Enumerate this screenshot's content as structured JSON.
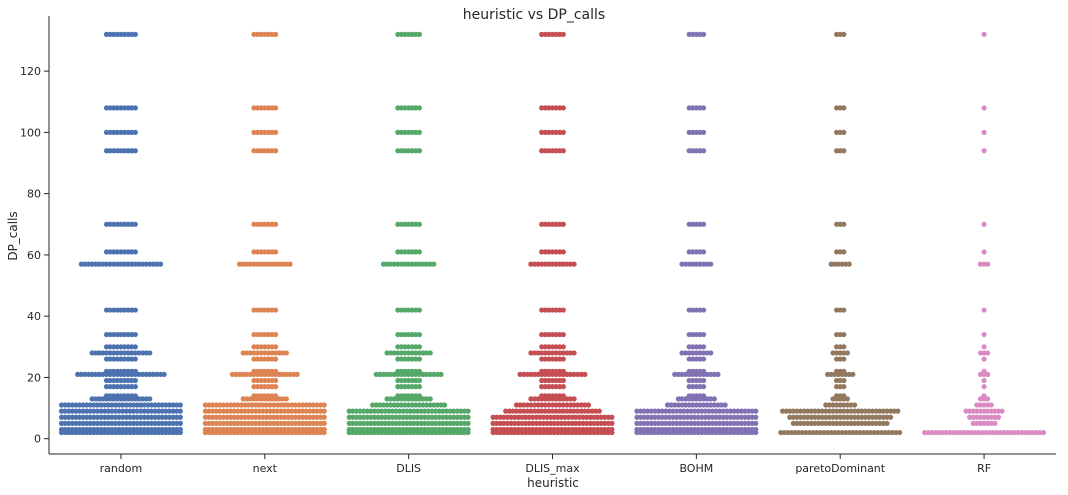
{
  "chart_data": {
    "type": "scatter",
    "subtype": "swarm",
    "title": "heuristic vs DP_calls",
    "xlabel": "heuristic",
    "ylabel": "DP_calls",
    "ylim": [
      -5,
      138
    ],
    "yticks": [
      0,
      20,
      40,
      60,
      80,
      100,
      120
    ],
    "categories": [
      "random",
      "next",
      "DLIS",
      "DLIS_max",
      "BOHM",
      "paretoDominant",
      "RF"
    ],
    "colors": [
      "#4c72b0",
      "#dd8452",
      "#55a868",
      "#c44e52",
      "#8172b3",
      "#937860",
      "#da8bc3"
    ],
    "grid": false,
    "series": [
      {
        "category": "random",
        "levels": [
          {
            "y": 132,
            "count": 9
          },
          {
            "y": 108,
            "count": 9
          },
          {
            "y": 100,
            "count": 9
          },
          {
            "y": 94,
            "count": 9
          },
          {
            "y": 70,
            "count": 9
          },
          {
            "y": 61,
            "count": 9
          },
          {
            "y": 57,
            "count": 23
          },
          {
            "y": 42,
            "count": 9
          },
          {
            "y": 34,
            "count": 9
          },
          {
            "y": 30,
            "count": 9
          },
          {
            "y": 28,
            "count": 17
          },
          {
            "y": 26,
            "count": 9
          },
          {
            "y": 22,
            "count": 9
          },
          {
            "y": 21,
            "count": 25
          },
          {
            "y": 19,
            "count": 9
          },
          {
            "y": 17,
            "count": 9
          },
          {
            "y": 14,
            "count": 9
          },
          {
            "y": 13,
            "count": 17
          },
          {
            "y": 11,
            "count": 34
          },
          {
            "y": 9,
            "count": 34
          },
          {
            "y": 7,
            "count": 34
          },
          {
            "y": 5,
            "count": 34
          },
          {
            "y": 3,
            "count": 34
          },
          {
            "y": 2,
            "count": 34
          }
        ]
      },
      {
        "category": "next",
        "levels": [
          {
            "y": 132,
            "count": 7
          },
          {
            "y": 108,
            "count": 7
          },
          {
            "y": 100,
            "count": 7
          },
          {
            "y": 94,
            "count": 7
          },
          {
            "y": 70,
            "count": 7
          },
          {
            "y": 61,
            "count": 7
          },
          {
            "y": 57,
            "count": 15
          },
          {
            "y": 42,
            "count": 7
          },
          {
            "y": 34,
            "count": 7
          },
          {
            "y": 30,
            "count": 7
          },
          {
            "y": 28,
            "count": 13
          },
          {
            "y": 26,
            "count": 7
          },
          {
            "y": 22,
            "count": 7
          },
          {
            "y": 21,
            "count": 19
          },
          {
            "y": 19,
            "count": 7
          },
          {
            "y": 17,
            "count": 7
          },
          {
            "y": 14,
            "count": 7
          },
          {
            "y": 13,
            "count": 13
          },
          {
            "y": 11,
            "count": 34
          },
          {
            "y": 9,
            "count": 34
          },
          {
            "y": 7,
            "count": 34
          },
          {
            "y": 5,
            "count": 34
          },
          {
            "y": 3,
            "count": 34
          },
          {
            "y": 2,
            "count": 34
          }
        ]
      },
      {
        "category": "DLIS",
        "levels": [
          {
            "y": 132,
            "count": 7
          },
          {
            "y": 108,
            "count": 7
          },
          {
            "y": 100,
            "count": 7
          },
          {
            "y": 94,
            "count": 7
          },
          {
            "y": 70,
            "count": 7
          },
          {
            "y": 61,
            "count": 7
          },
          {
            "y": 57,
            "count": 15
          },
          {
            "y": 42,
            "count": 7
          },
          {
            "y": 34,
            "count": 7
          },
          {
            "y": 30,
            "count": 7
          },
          {
            "y": 28,
            "count": 13
          },
          {
            "y": 26,
            "count": 7
          },
          {
            "y": 22,
            "count": 7
          },
          {
            "y": 21,
            "count": 19
          },
          {
            "y": 19,
            "count": 7
          },
          {
            "y": 17,
            "count": 7
          },
          {
            "y": 14,
            "count": 7
          },
          {
            "y": 13,
            "count": 13
          },
          {
            "y": 11,
            "count": 21
          },
          {
            "y": 9,
            "count": 34
          },
          {
            "y": 7,
            "count": 34
          },
          {
            "y": 5,
            "count": 34
          },
          {
            "y": 3,
            "count": 34
          },
          {
            "y": 2,
            "count": 34
          }
        ]
      },
      {
        "category": "DLIS_max",
        "levels": [
          {
            "y": 132,
            "count": 7
          },
          {
            "y": 108,
            "count": 7
          },
          {
            "y": 100,
            "count": 7
          },
          {
            "y": 94,
            "count": 7
          },
          {
            "y": 70,
            "count": 7
          },
          {
            "y": 61,
            "count": 7
          },
          {
            "y": 57,
            "count": 13
          },
          {
            "y": 42,
            "count": 7
          },
          {
            "y": 34,
            "count": 7
          },
          {
            "y": 30,
            "count": 7
          },
          {
            "y": 28,
            "count": 13
          },
          {
            "y": 26,
            "count": 7
          },
          {
            "y": 22,
            "count": 7
          },
          {
            "y": 21,
            "count": 19
          },
          {
            "y": 19,
            "count": 7
          },
          {
            "y": 17,
            "count": 7
          },
          {
            "y": 14,
            "count": 7
          },
          {
            "y": 13,
            "count": 13
          },
          {
            "y": 11,
            "count": 21
          },
          {
            "y": 9,
            "count": 27
          },
          {
            "y": 7,
            "count": 34
          },
          {
            "y": 5,
            "count": 34
          },
          {
            "y": 3,
            "count": 34
          },
          {
            "y": 2,
            "count": 34
          }
        ]
      },
      {
        "category": "BOHM",
        "levels": [
          {
            "y": 132,
            "count": 5
          },
          {
            "y": 108,
            "count": 5
          },
          {
            "y": 100,
            "count": 5
          },
          {
            "y": 94,
            "count": 5
          },
          {
            "y": 70,
            "count": 5
          },
          {
            "y": 61,
            "count": 5
          },
          {
            "y": 57,
            "count": 9
          },
          {
            "y": 42,
            "count": 5
          },
          {
            "y": 34,
            "count": 5
          },
          {
            "y": 30,
            "count": 5
          },
          {
            "y": 28,
            "count": 9
          },
          {
            "y": 26,
            "count": 5
          },
          {
            "y": 22,
            "count": 5
          },
          {
            "y": 21,
            "count": 13
          },
          {
            "y": 19,
            "count": 5
          },
          {
            "y": 17,
            "count": 5
          },
          {
            "y": 14,
            "count": 5
          },
          {
            "y": 13,
            "count": 11
          },
          {
            "y": 11,
            "count": 17
          },
          {
            "y": 9,
            "count": 34
          },
          {
            "y": 7,
            "count": 34
          },
          {
            "y": 5,
            "count": 34
          },
          {
            "y": 3,
            "count": 34
          },
          {
            "y": 2,
            "count": 34
          }
        ]
      },
      {
        "category": "paretoDominant",
        "levels": [
          {
            "y": 132,
            "count": 3
          },
          {
            "y": 108,
            "count": 3
          },
          {
            "y": 100,
            "count": 3
          },
          {
            "y": 94,
            "count": 3
          },
          {
            "y": 70,
            "count": 3
          },
          {
            "y": 61,
            "count": 3
          },
          {
            "y": 57,
            "count": 6
          },
          {
            "y": 42,
            "count": 3
          },
          {
            "y": 34,
            "count": 3
          },
          {
            "y": 30,
            "count": 3
          },
          {
            "y": 28,
            "count": 5
          },
          {
            "y": 26,
            "count": 3
          },
          {
            "y": 22,
            "count": 3
          },
          {
            "y": 21,
            "count": 8
          },
          {
            "y": 19,
            "count": 3
          },
          {
            "y": 17,
            "count": 3
          },
          {
            "y": 14,
            "count": 3
          },
          {
            "y": 13,
            "count": 5
          },
          {
            "y": 11,
            "count": 9
          },
          {
            "y": 9,
            "count": 33
          },
          {
            "y": 7,
            "count": 29
          },
          {
            "y": 5,
            "count": 27
          },
          {
            "y": 2,
            "count": 34
          }
        ]
      },
      {
        "category": "RF",
        "levels": [
          {
            "y": 132,
            "count": 1
          },
          {
            "y": 108,
            "count": 1
          },
          {
            "y": 100,
            "count": 1
          },
          {
            "y": 94,
            "count": 1
          },
          {
            "y": 70,
            "count": 1
          },
          {
            "y": 61,
            "count": 1
          },
          {
            "y": 57,
            "count": 3
          },
          {
            "y": 42,
            "count": 1
          },
          {
            "y": 34,
            "count": 1
          },
          {
            "y": 30,
            "count": 1
          },
          {
            "y": 28,
            "count": 3
          },
          {
            "y": 26,
            "count": 1
          },
          {
            "y": 22,
            "count": 1
          },
          {
            "y": 21,
            "count": 3
          },
          {
            "y": 19,
            "count": 1
          },
          {
            "y": 17,
            "count": 1
          },
          {
            "y": 14,
            "count": 1
          },
          {
            "y": 13,
            "count": 3
          },
          {
            "y": 11,
            "count": 5
          },
          {
            "y": 9,
            "count": 11
          },
          {
            "y": 7,
            "count": 9
          },
          {
            "y": 5,
            "count": 7
          },
          {
            "y": 2,
            "count": 34
          }
        ]
      }
    ]
  }
}
